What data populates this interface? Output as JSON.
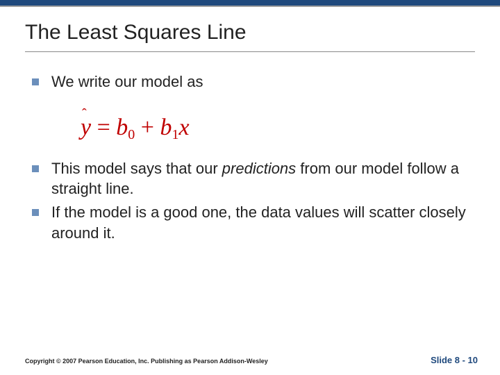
{
  "colors": {
    "topbar": "#1f497d",
    "bullet": "#6b8fbb",
    "equation": "#c00000",
    "slidenum": "#1f497d"
  },
  "title": "The Least Squares Line",
  "bullets": {
    "b1": "We write our model as",
    "b2_before": "This model says that our ",
    "b2_italic": "predictions",
    "b2_after": " from our model follow a straight line.",
    "b3": "If the model is a good one, the data values will scatter closely around it."
  },
  "equation": {
    "lhs_var": "y",
    "eq": " = ",
    "b": "b",
    "sub0": "0",
    "plus": " + ",
    "sub1": "1",
    "x": "x"
  },
  "footer": {
    "copyright": "Copyright © 2007 Pearson Education, Inc. Publishing as Pearson Addison-Wesley",
    "slide": "Slide 8 - 10"
  }
}
